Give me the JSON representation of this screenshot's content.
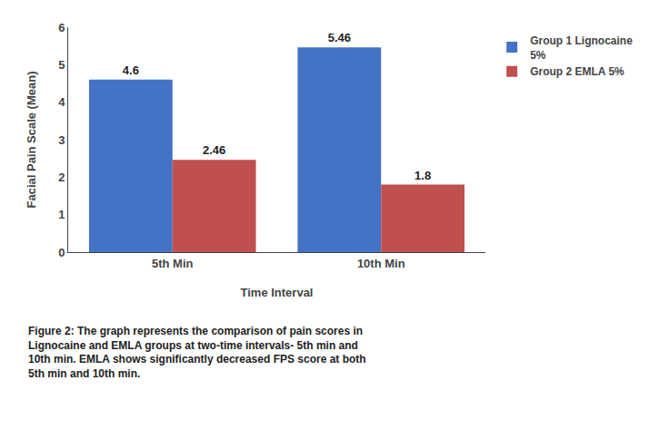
{
  "chart_data": {
    "type": "bar",
    "categories": [
      "5th Min",
      "10th Min"
    ],
    "series": [
      {
        "name": "Group 1 Lignocaine\n5%",
        "color": "#4472C4",
        "values": [
          4.6,
          5.46
        ]
      },
      {
        "name": "Group 2 EMLA 5%",
        "color": "#C0504D",
        "values": [
          2.46,
          1.8
        ]
      }
    ],
    "xlabel": "Time Interval",
    "ylabel": "Facial Pain Scale (Mean)",
    "ylim": [
      0,
      6
    ],
    "yticks": [
      0,
      1,
      2,
      3,
      4,
      5,
      6
    ],
    "grid": false,
    "legend": "upper right",
    "data_labels": true,
    "annotations": [
      "Figure 2: The graph represents the comparison of pain scores in",
      "Lignocaine and EMLA groups at two-time intervals- 5th min and",
      "10th min. EMLA shows significantly decreased FPS score at both",
      "5th min and 10th min."
    ]
  }
}
